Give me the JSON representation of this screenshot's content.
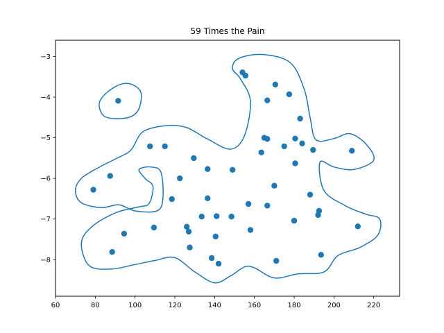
{
  "chart_data": {
    "type": "scatter",
    "title": "59 Times the Pain",
    "xlabel": "",
    "ylabel": "",
    "xlim": [
      60,
      233
    ],
    "ylim": [
      -8.9,
      -2.6
    ],
    "xticks": [
      60,
      80,
      100,
      120,
      140,
      160,
      180,
      200,
      220
    ],
    "yticks": [
      -3,
      -4,
      -5,
      -6,
      -7,
      -8
    ],
    "xtick_labels": [
      "60",
      "80",
      "100",
      "120",
      "140",
      "160",
      "180",
      "200",
      "220"
    ],
    "ytick_labels": [
      "−3",
      "−4",
      "−5",
      "−6",
      "−7",
      "−8"
    ],
    "grid": false,
    "color": "#1f77b4",
    "points": [
      {
        "x": 79,
        "y": -6.28
      },
      {
        "x": 87.5,
        "y": -5.94
      },
      {
        "x": 88.5,
        "y": -7.81
      },
      {
        "x": 91.5,
        "y": -4.09
      },
      {
        "x": 94.5,
        "y": -7.36
      },
      {
        "x": 107.5,
        "y": -5.21
      },
      {
        "x": 109.5,
        "y": -7.21
      },
      {
        "x": 115,
        "y": -5.21
      },
      {
        "x": 118.5,
        "y": -6.51
      },
      {
        "x": 122.5,
        "y": -6.0
      },
      {
        "x": 126,
        "y": -7.19
      },
      {
        "x": 127,
        "y": -7.31
      },
      {
        "x": 127.5,
        "y": -7.7
      },
      {
        "x": 129.5,
        "y": -5.5
      },
      {
        "x": 133.5,
        "y": -6.94
      },
      {
        "x": 136.5,
        "y": -5.77
      },
      {
        "x": 136.5,
        "y": -6.49
      },
      {
        "x": 138.5,
        "y": -7.96
      },
      {
        "x": 140.5,
        "y": -7.43
      },
      {
        "x": 141,
        "y": -6.93
      },
      {
        "x": 142,
        "y": -8.1
      },
      {
        "x": 148.5,
        "y": -6.94
      },
      {
        "x": 149,
        "y": -5.79
      },
      {
        "x": 154,
        "y": -3.39
      },
      {
        "x": 155.5,
        "y": -3.47
      },
      {
        "x": 157,
        "y": -6.63
      },
      {
        "x": 158,
        "y": -7.27
      },
      {
        "x": 163.5,
        "y": -5.36
      },
      {
        "x": 165,
        "y": -5.0
      },
      {
        "x": 166.5,
        "y": -5.03
      },
      {
        "x": 166.5,
        "y": -4.08
      },
      {
        "x": 166.5,
        "y": -6.67
      },
      {
        "x": 170,
        "y": -6.18
      },
      {
        "x": 170.5,
        "y": -3.69
      },
      {
        "x": 171,
        "y": -8.03
      },
      {
        "x": 175,
        "y": -5.21
      },
      {
        "x": 177.5,
        "y": -3.93
      },
      {
        "x": 180,
        "y": -7.04
      },
      {
        "x": 180.5,
        "y": -5.63
      },
      {
        "x": 180.5,
        "y": -5.02
      },
      {
        "x": 183,
        "y": -4.53
      },
      {
        "x": 184,
        "y": -5.14
      },
      {
        "x": 188,
        "y": -6.4
      },
      {
        "x": 189.5,
        "y": -5.3
      },
      {
        "x": 192,
        "y": -6.9
      },
      {
        "x": 192.5,
        "y": -6.8
      },
      {
        "x": 193.5,
        "y": -7.88
      },
      {
        "x": 209,
        "y": -5.32
      },
      {
        "x": 212,
        "y": -7.18
      }
    ],
    "contours": [
      [
        [
          81,
          -5.75
        ],
        [
          91,
          -5.5
        ],
        [
          98,
          -5.3
        ],
        [
          104,
          -4.85
        ],
        [
          116,
          -4.7
        ],
        [
          126,
          -4.75
        ],
        [
          136,
          -5.02
        ],
        [
          148,
          -5.28
        ],
        [
          155,
          -4.95
        ],
        [
          158,
          -4.1
        ],
        [
          153,
          -3.55
        ],
        [
          149,
          -3.3
        ],
        [
          152,
          -3.05
        ],
        [
          164,
          -2.95
        ],
        [
          178,
          -3.15
        ],
        [
          185,
          -3.8
        ],
        [
          188,
          -4.5
        ],
        [
          191,
          -5.05
        ],
        [
          200,
          -5.02
        ],
        [
          208,
          -4.9
        ],
        [
          216,
          -5.15
        ],
        [
          220,
          -5.55
        ],
        [
          210,
          -5.78
        ],
        [
          200,
          -5.72
        ],
        [
          193,
          -5.6
        ],
        [
          195,
          -6.3
        ],
        [
          206,
          -6.68
        ],
        [
          216,
          -6.88
        ],
        [
          223,
          -7.0
        ],
        [
          222,
          -7.4
        ],
        [
          213,
          -7.7
        ],
        [
          202,
          -7.9
        ],
        [
          195,
          -8.3
        ],
        [
          182,
          -8.35
        ],
        [
          170,
          -8.45
        ],
        [
          160,
          -8.2
        ],
        [
          155,
          -8.18
        ],
        [
          148,
          -8.4
        ],
        [
          140,
          -8.57
        ],
        [
          130,
          -8.3
        ],
        [
          120,
          -7.95
        ],
        [
          110,
          -8.02
        ],
        [
          100,
          -8.12
        ],
        [
          88,
          -8.23
        ],
        [
          77,
          -8.15
        ],
        [
          73,
          -7.6
        ],
        [
          78,
          -7.2
        ],
        [
          90,
          -6.85
        ],
        [
          102,
          -6.7
        ],
        [
          107,
          -6.62
        ],
        [
          109,
          -6.2
        ],
        [
          105,
          -6.0
        ],
        [
          102,
          -5.78
        ],
        [
          108,
          -5.72
        ],
        [
          113,
          -5.85
        ],
        [
          114,
          -6.5
        ],
        [
          111,
          -6.8
        ],
        [
          100,
          -6.8
        ],
        [
          92,
          -6.65
        ],
        [
          83,
          -6.72
        ],
        [
          73,
          -6.6
        ],
        [
          70,
          -6.3
        ],
        [
          73,
          -6.0
        ],
        [
          81,
          -5.75
        ]
      ],
      [
        [
          82,
          -4.15
        ],
        [
          86,
          -3.88
        ],
        [
          93,
          -3.68
        ],
        [
          99,
          -3.7
        ],
        [
          103,
          -3.9
        ],
        [
          102,
          -4.28
        ],
        [
          98,
          -4.48
        ],
        [
          90,
          -4.53
        ],
        [
          84,
          -4.45
        ],
        [
          82,
          -4.15
        ]
      ]
    ]
  }
}
